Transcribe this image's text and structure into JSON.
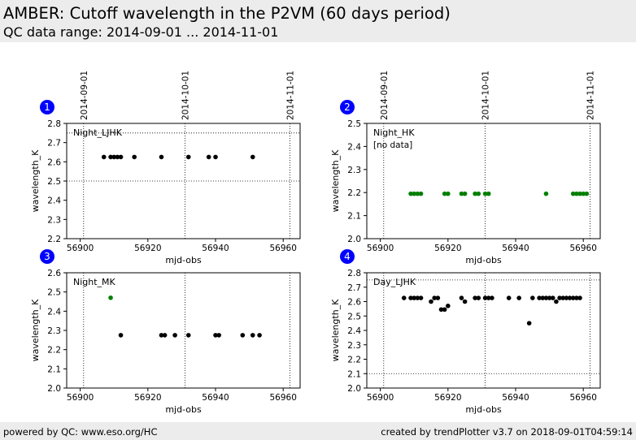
{
  "header": {
    "title": "AMBER: Cutoff wavelength in the P2VM (60 days period)",
    "subtitle": "QC data range: 2014-09-01 ... 2014-11-01"
  },
  "footer": {
    "left": "powered by QC: www.eso.org/HC",
    "right": "created by trendPlotter v3.7 on 2018-09-01T04:59:14"
  },
  "colors": {
    "black_points": "#000000",
    "green_points": "#008000",
    "badge": "#0000ff",
    "header_bg": "#ececec"
  },
  "chart_data": [
    {
      "type": "scatter",
      "badge": "1",
      "label": "Night_LJHK",
      "note": "",
      "xlabel": "mjd-obs",
      "ylabel": "wavelength_K",
      "xlim": [
        56896,
        56965
      ],
      "ylim": [
        2.2,
        2.8
      ],
      "xticks": [
        56900,
        56920,
        56940,
        56960
      ],
      "yticks": [
        2.2,
        2.3,
        2.4,
        2.5,
        2.6,
        2.7,
        2.8
      ],
      "top_dates": [
        {
          "label": "2014-09-01",
          "x": 56901
        },
        {
          "label": "2014-10-01",
          "x": 56931
        },
        {
          "label": "2014-11-01",
          "x": 56962
        }
      ],
      "hlines": [
        2.5,
        2.75
      ],
      "series": [
        {
          "color": "#000000",
          "x": [
            56907,
            56909,
            56910,
            56911,
            56912,
            56916,
            56924,
            56932,
            56938,
            56940,
            56951
          ],
          "y": [
            2.625,
            2.625,
            2.625,
            2.625,
            2.625,
            2.625,
            2.625,
            2.625,
            2.625,
            2.625,
            2.625
          ]
        }
      ]
    },
    {
      "type": "scatter",
      "badge": "2",
      "label": "Night_HK",
      "note": "[no data]",
      "xlabel": "mjd-obs",
      "ylabel": "wavelength_K",
      "xlim": [
        56896,
        56965
      ],
      "ylim": [
        2.0,
        2.5
      ],
      "xticks": [
        56900,
        56920,
        56940,
        56960
      ],
      "yticks": [
        2.0,
        2.1,
        2.2,
        2.3,
        2.4,
        2.5
      ],
      "top_dates": [
        {
          "label": "2014-09-01",
          "x": 56901
        },
        {
          "label": "2014-10-01",
          "x": 56931
        },
        {
          "label": "2014-11-01",
          "x": 56962
        }
      ],
      "hlines": [],
      "series": [
        {
          "color": "#008000",
          "x": [
            56909,
            56910,
            56911,
            56912,
            56919,
            56920,
            56924,
            56925,
            56928,
            56929,
            56931,
            56932,
            56949,
            56957,
            56958,
            56959,
            56960,
            56961
          ],
          "y": [
            2.195,
            2.195,
            2.195,
            2.195,
            2.195,
            2.195,
            2.195,
            2.195,
            2.195,
            2.195,
            2.195,
            2.195,
            2.195,
            2.195,
            2.195,
            2.195,
            2.195,
            2.195
          ]
        }
      ]
    },
    {
      "type": "scatter",
      "badge": "3",
      "label": "Night_MK",
      "note": "",
      "xlabel": "mjd-obs",
      "ylabel": "wavelength_K",
      "xlim": [
        56896,
        56965
      ],
      "ylim": [
        2.0,
        2.6
      ],
      "xticks": [
        56900,
        56920,
        56940,
        56960
      ],
      "yticks": [
        2.0,
        2.1,
        2.2,
        2.3,
        2.4,
        2.5,
        2.6
      ],
      "top_dates": [],
      "date_lines": [
        56901,
        56931,
        56962
      ],
      "hlines": [],
      "series": [
        {
          "color": "#008000",
          "x": [
            56909
          ],
          "y": [
            2.47
          ]
        },
        {
          "color": "#000000",
          "x": [
            56912,
            56924,
            56925,
            56928,
            56932,
            56940,
            56941,
            56948,
            56951,
            56953
          ],
          "y": [
            2.275,
            2.275,
            2.275,
            2.275,
            2.275,
            2.275,
            2.275,
            2.275,
            2.275,
            2.275
          ]
        }
      ]
    },
    {
      "type": "scatter",
      "badge": "4",
      "label": "Day_LJHK",
      "note": "",
      "xlabel": "mjd-obs",
      "ylabel": "wavelength_K",
      "xlim": [
        56896,
        56965
      ],
      "ylim": [
        2.0,
        2.8
      ],
      "xticks": [
        56900,
        56920,
        56940,
        56960
      ],
      "yticks": [
        2.0,
        2.1,
        2.2,
        2.3,
        2.4,
        2.5,
        2.6,
        2.7,
        2.8
      ],
      "top_dates": [],
      "date_lines": [
        56901,
        56931,
        56962
      ],
      "hlines": [
        2.1,
        2.75
      ],
      "series": [
        {
          "color": "#000000",
          "x": [
            56907,
            56909,
            56910,
            56911,
            56912,
            56915,
            56916,
            56917,
            56918,
            56919,
            56920,
            56924,
            56925,
            56928,
            56929,
            56931,
            56932,
            56933,
            56938,
            56941,
            56944,
            56945,
            56947,
            56948,
            56949,
            56950,
            56951,
            56952,
            56953,
            56954,
            56955,
            56956,
            56957,
            56958,
            56959
          ],
          "y": [
            2.625,
            2.625,
            2.625,
            2.625,
            2.625,
            2.6,
            2.625,
            2.625,
            2.545,
            2.545,
            2.57,
            2.625,
            2.6,
            2.625,
            2.625,
            2.625,
            2.625,
            2.625,
            2.625,
            2.625,
            2.45,
            2.625,
            2.625,
            2.625,
            2.625,
            2.625,
            2.625,
            2.6,
            2.625,
            2.625,
            2.625,
            2.625,
            2.625,
            2.625,
            2.625
          ]
        }
      ]
    }
  ]
}
